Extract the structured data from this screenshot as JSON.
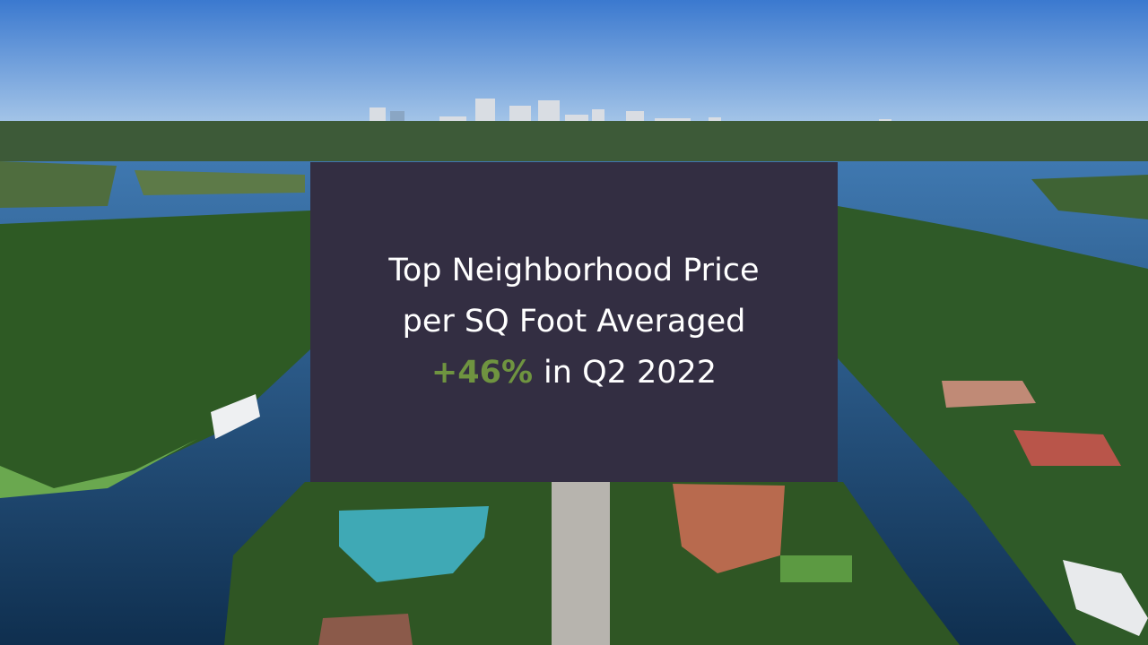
{
  "headline": {
    "lines": [
      "Top Neighborhood Price",
      "per SQ Foot Averaged"
    ],
    "highlight": "+46%",
    "suffix": "in Q2 2022"
  }
}
